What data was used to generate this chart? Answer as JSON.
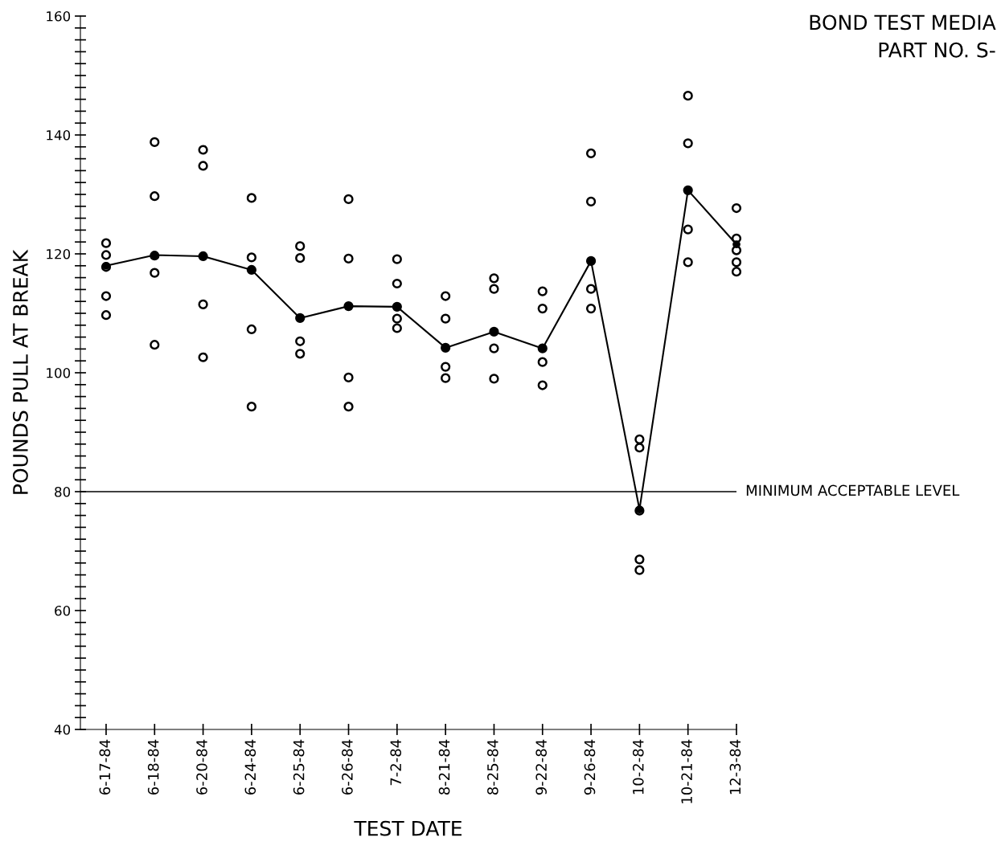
{
  "chart_data": {
    "type": "scatter",
    "title": "BOND TEST MEDIA",
    "subtitle": "PART NO. S-",
    "xlabel": "TEST DATE",
    "ylabel": "POUNDS PULL AT BREAK",
    "categories": [
      "6-17-84",
      "6-18-84",
      "6-20-84",
      "6-24-84",
      "6-25-84",
      "6-26-84",
      "7-2-84",
      "8-21-84",
      "8-25-84",
      "9-22-84",
      "9-26-84",
      "10-2-84",
      "10-21-84",
      "12-3-84"
    ],
    "series": [
      {
        "marker": "circle",
        "color": "#000000",
        "x": [
          "6-17-84",
          "6-17-84",
          "6-17-84",
          "6-17-84",
          "6-17-84",
          "6-18-84",
          "6-18-84",
          "6-18-84",
          "6-18-84",
          "6-18-84",
          "6-20-84",
          "6-20-84",
          "6-20-84",
          "6-20-84",
          "6-20-84",
          "6-24-84",
          "6-24-84",
          "6-24-84",
          "6-24-84",
          "6-24-84",
          "6-25-84",
          "6-25-84",
          "6-25-84",
          "6-25-84",
          "6-25-84",
          "6-26-84",
          "6-26-84",
          "6-26-84",
          "6-26-84",
          "6-26-84",
          "7-2-84",
          "7-2-84",
          "7-2-84",
          "7-2-84",
          "7-2-84",
          "8-21-84",
          "8-21-84",
          "8-21-84",
          "8-21-84",
          "8-21-84",
          "8-25-84",
          "8-25-84",
          "8-25-84",
          "8-25-84",
          "8-25-84",
          "9-22-84",
          "9-22-84",
          "9-22-84",
          "9-22-84",
          "9-22-84",
          "9-26-84",
          "9-26-84",
          "9-26-84",
          "9-26-84",
          "9-26-84",
          "10-2-84",
          "10-2-84",
          "10-2-84",
          "10-2-84",
          "10-2-84",
          "10-21-84",
          "10-21-84",
          "10-21-84",
          "10-21-84",
          "10-21-84",
          "12-3-84",
          "12-3-84",
          "12-3-84",
          "12-3-84",
          "12-3-84"
        ],
        "values": [
          121.8,
          119.8,
          117.8,
          112.9,
          109.7,
          138.8,
          129.7,
          119.7,
          116.8,
          104.7,
          137.5,
          134.8,
          119.6,
          111.5,
          102.6,
          129.4,
          119.4,
          117.3,
          107.3,
          94.3,
          121.3,
          119.3,
          109.2,
          105.3,
          103.2,
          129.2,
          119.2,
          111.2,
          99.2,
          94.3,
          119.1,
          115.0,
          111.1,
          109.1,
          107.5,
          112.9,
          109.1,
          104.2,
          101.0,
          99.1,
          115.9,
          114.1,
          106.9,
          104.1,
          99.0,
          113.7,
          110.8,
          104.1,
          101.8,
          97.9,
          136.9,
          128.8,
          118.8,
          114.1,
          110.8,
          88.8,
          87.4,
          76.8,
          68.6,
          66.8,
          146.6,
          138.6,
          130.7,
          124.1,
          118.6,
          127.7,
          122.6,
          120.6,
          118.6,
          117.0
        ]
      },
      {
        "type": "line",
        "marker": "circle",
        "line_style": "solid",
        "color": "#000000",
        "values": [
          118.0,
          119.8,
          119.6,
          117.3,
          109.2,
          111.2,
          111.1,
          104.2,
          106.9,
          104.1,
          118.8,
          77.0,
          130.7,
          121.6
        ]
      }
    ],
    "ylim": [
      40,
      160
    ],
    "yticks": [
      40,
      {
        "value": 42,
        "label": null
      },
      {
        "value": 44,
        "label": null
      },
      {
        "value": 46,
        "label": null
      },
      {
        "value": 48,
        "label": null
      },
      {
        "value": 50,
        "label": null
      },
      {
        "value": 52,
        "label": null
      },
      {
        "value": 54,
        "label": null
      },
      {
        "value": 56,
        "label": null
      },
      {
        "value": 58,
        "label": null
      },
      60,
      {
        "value": 62,
        "label": null
      },
      {
        "value": 64,
        "label": null
      },
      {
        "value": 66,
        "label": null
      },
      {
        "value": 68,
        "label": null
      },
      {
        "value": 70,
        "label": null
      },
      {
        "value": 72,
        "label": null
      },
      {
        "value": 74,
        "label": null
      },
      {
        "value": 76,
        "label": null
      },
      {
        "value": 78,
        "label": null
      },
      80,
      {
        "value": 82,
        "label": null
      },
      {
        "value": 84,
        "label": null
      },
      {
        "value": 86,
        "label": null
      },
      {
        "value": 88,
        "label": null
      },
      {
        "value": 90,
        "label": null
      },
      {
        "value": 92,
        "label": null
      },
      {
        "value": 94,
        "label": null
      },
      {
        "value": 96,
        "label": null
      },
      {
        "value": 98,
        "label": null
      },
      100,
      {
        "value": 102,
        "label": null
      },
      {
        "value": 104,
        "label": null
      },
      {
        "value": 106,
        "label": null
      },
      {
        "value": 108,
        "label": null
      },
      {
        "value": 110,
        "label": null
      },
      {
        "value": 112,
        "label": null
      },
      {
        "value": 114,
        "label": null
      },
      {
        "value": 116,
        "label": null
      },
      {
        "value": 118,
        "label": null
      },
      120,
      {
        "value": 122,
        "label": null
      },
      {
        "value": 124,
        "label": null
      },
      {
        "value": 126,
        "label": null
      },
      {
        "value": 128,
        "label": null
      },
      {
        "value": 130,
        "label": null
      },
      {
        "value": 132,
        "label": null
      },
      {
        "value": 134,
        "label": null
      },
      {
        "value": 136,
        "label": null
      },
      {
        "value": 138,
        "label": null
      },
      140,
      {
        "value": 142,
        "label": null
      },
      {
        "value": 144,
        "label": null
      },
      {
        "value": 146,
        "label": null
      },
      {
        "value": 148,
        "label": null
      },
      {
        "value": 150,
        "label": null
      },
      {
        "value": 152,
        "label": null
      },
      {
        "value": 154,
        "label": null
      },
      {
        "value": 156,
        "label": null
      },
      {
        "value": 158,
        "label": null
      },
      160
    ],
    "ref_lines": [
      {
        "axis": "y",
        "value": 80,
        "label": "MINIMUM ACCEPTABLE LEVEL",
        "color": "#000000",
        "line_style": "solid"
      }
    ],
    "grid": false,
    "legend": false
  }
}
